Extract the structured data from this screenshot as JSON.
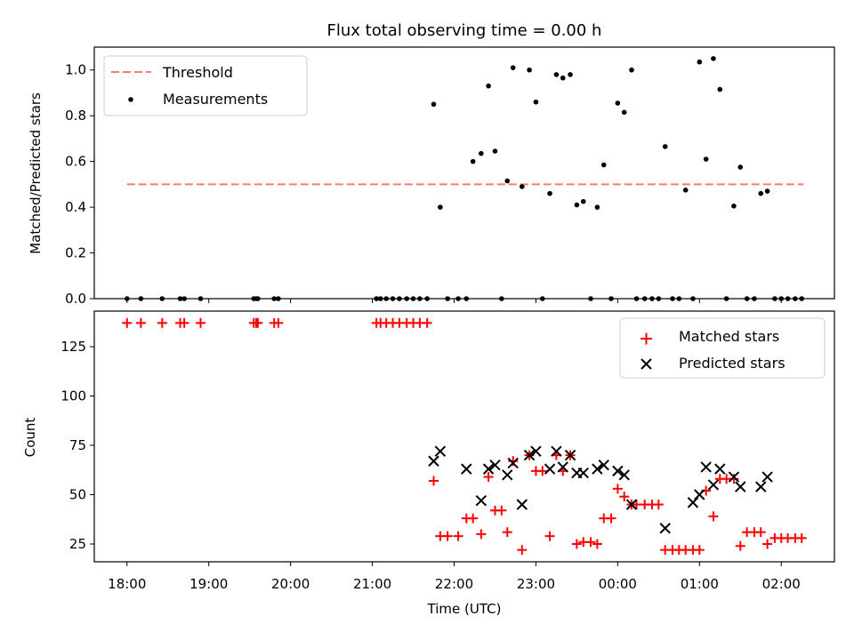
{
  "chart_data": [
    {
      "type": "scatter",
      "title": "Flux total observing time = 0.00 h",
      "xlabel": "",
      "ylabel": "Matched/Predicted stars",
      "xlim": [
        17.6,
        26.65
      ],
      "ylim": [
        0,
        1.1
      ],
      "yticks": [
        "0.0",
        "0.2",
        "0.4",
        "0.6",
        "0.8",
        "1.0"
      ],
      "legend": [
        "Threshold",
        "Measurements"
      ],
      "legend_position": "top-left",
      "threshold": {
        "name": "Threshold",
        "value": 0.5,
        "x_start": 18.0,
        "x_end": 26.27,
        "color": "#ff7777"
      },
      "measurements": {
        "name": "Measurements",
        "color": "#000000",
        "x": [
          18.0,
          18.17,
          18.43,
          18.65,
          18.7,
          18.9,
          19.55,
          19.58,
          19.6,
          19.8,
          19.85,
          21.05,
          21.1,
          21.17,
          21.25,
          21.33,
          21.42,
          21.5,
          21.58,
          21.67,
          21.75,
          21.83,
          21.92,
          22.05,
          22.15,
          22.23,
          22.33,
          22.42,
          22.5,
          22.58,
          22.65,
          22.72,
          22.83,
          22.92,
          23.0,
          23.08,
          23.17,
          23.25,
          23.33,
          23.42,
          23.5,
          23.58,
          23.67,
          23.75,
          23.83,
          23.92,
          24.0,
          24.08,
          24.17,
          24.23,
          24.33,
          24.42,
          24.5,
          24.58,
          24.67,
          24.75,
          24.83,
          24.92,
          25.0,
          25.08,
          25.17,
          25.25,
          25.33,
          25.42,
          25.5,
          25.58,
          25.67,
          25.75,
          25.83,
          25.92,
          26.0,
          26.08,
          26.17,
          26.25
        ],
        "y": [
          0.0,
          0.0,
          0.0,
          0.0,
          0.0,
          0.0,
          0.0,
          0.0,
          0.0,
          0.0,
          0.0,
          0.0,
          0.0,
          0.0,
          0.0,
          0.0,
          0.0,
          0.0,
          0.0,
          0.0,
          0.85,
          0.4,
          0.0,
          0.0,
          0.0,
          0.6,
          0.635,
          0.93,
          0.645,
          0.0,
          0.515,
          1.01,
          0.49,
          1.0,
          0.86,
          0.0,
          0.46,
          0.98,
          0.965,
          0.98,
          0.41,
          0.425,
          0.0,
          0.4,
          0.585,
          0.0,
          0.855,
          0.815,
          1.0,
          0.0,
          0.0,
          0.0,
          0.0,
          0.665,
          0.0,
          0.0,
          0.475,
          0.0,
          1.035,
          0.61,
          1.05,
          0.915,
          0.0,
          0.405,
          0.575,
          0.0,
          0.0,
          0.46,
          0.47,
          0.0,
          0.0,
          0.0,
          0.0,
          0.0
        ]
      }
    },
    {
      "type": "scatter",
      "title": "",
      "xlabel": "Time (UTC)",
      "ylabel": "Count",
      "xlim": [
        17.6,
        26.65
      ],
      "ylim": [
        16,
        143
      ],
      "yticks": [
        "25",
        "50",
        "75",
        "100",
        "125"
      ],
      "xticks": [
        "18:00",
        "19:00",
        "20:00",
        "21:00",
        "22:00",
        "23:00",
        "00:00",
        "01:00",
        "02:00"
      ],
      "legend": [
        "Matched stars",
        "Predicted stars"
      ],
      "legend_position": "top-right",
      "matched": {
        "name": "Matched stars",
        "color": "#ff0000",
        "x": [
          18.0,
          18.17,
          18.43,
          18.65,
          18.7,
          18.9,
          19.55,
          19.58,
          19.6,
          19.8,
          19.85,
          21.05,
          21.1,
          21.17,
          21.25,
          21.33,
          21.42,
          21.5,
          21.58,
          21.67,
          21.75,
          21.83,
          21.92,
          22.05,
          22.15,
          22.23,
          22.33,
          22.42,
          22.5,
          22.58,
          22.65,
          22.72,
          22.83,
          22.92,
          23.0,
          23.08,
          23.17,
          23.25,
          23.33,
          23.42,
          23.5,
          23.58,
          23.67,
          23.75,
          23.83,
          23.92,
          24.0,
          24.08,
          24.17,
          24.23,
          24.33,
          24.42,
          24.5,
          24.58,
          24.67,
          24.75,
          24.83,
          24.92,
          25.0,
          25.08,
          25.17,
          25.25,
          25.33,
          25.42,
          25.5,
          25.58,
          25.67,
          25.75,
          25.83,
          25.92,
          26.0,
          26.08,
          26.17,
          26.25
        ],
        "y": [
          137,
          137,
          137,
          137,
          137,
          137,
          137,
          137,
          137,
          137,
          137,
          137,
          137,
          137,
          137,
          137,
          137,
          137,
          137,
          137,
          57,
          29,
          29,
          29,
          38,
          38,
          30,
          59,
          42,
          42,
          31,
          67,
          22,
          70,
          62,
          62,
          29,
          70,
          62,
          70,
          25,
          26,
          26,
          25,
          38,
          38,
          53,
          49,
          45,
          45,
          45,
          45,
          45,
          22,
          22,
          22,
          22,
          22,
          22,
          52,
          39,
          58,
          58,
          58,
          24,
          31,
          31,
          31,
          25,
          28,
          28,
          28,
          28,
          28
        ]
      },
      "predicted": {
        "name": "Predicted stars",
        "color": "#000000",
        "x": [
          21.75,
          21.83,
          22.15,
          22.33,
          22.42,
          22.5,
          22.65,
          22.72,
          22.83,
          22.92,
          23.0,
          23.17,
          23.25,
          23.33,
          23.42,
          23.5,
          23.58,
          23.75,
          23.83,
          24.0,
          24.08,
          24.17,
          24.58,
          24.92,
          25.0,
          25.08,
          25.17,
          25.25,
          25.42,
          25.5,
          25.75,
          25.83
        ],
        "y": [
          67,
          72,
          63,
          47,
          63,
          65,
          60,
          66,
          45,
          70,
          72,
          63,
          72,
          64,
          70,
          61,
          61,
          63,
          65,
          62,
          60,
          45,
          33,
          46,
          50,
          64,
          55,
          63,
          59,
          54,
          54,
          59
        ]
      }
    }
  ]
}
